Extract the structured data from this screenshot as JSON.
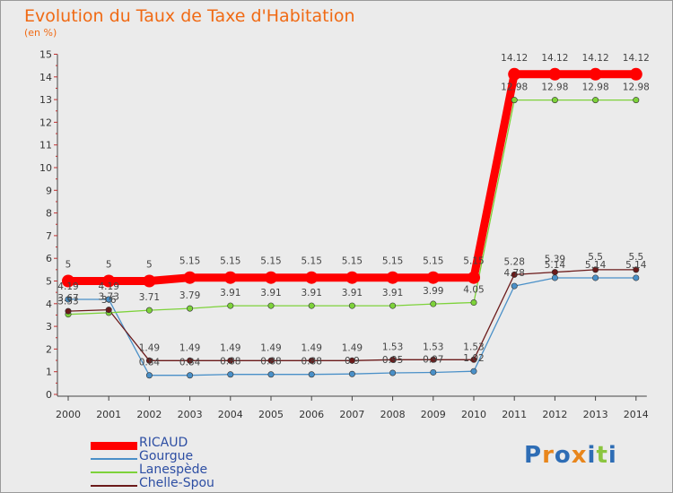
{
  "title": "Evolution du Taux de Taxe d'Habitation",
  "subtitle": "(en %)",
  "chart_data": {
    "type": "line",
    "title": "Evolution du Taux de Taxe d'Habitation",
    "ylabel": "(en %)",
    "xlabel": "",
    "x": [
      "2000",
      "2001",
      "2002",
      "2003",
      "2004",
      "2005",
      "2006",
      "2007",
      "2008",
      "2009",
      "2010",
      "2011",
      "2012",
      "2013",
      "2014"
    ],
    "ylim": [
      0,
      15
    ],
    "yticks": [
      0,
      1,
      2,
      3,
      4,
      5,
      6,
      7,
      8,
      9,
      10,
      11,
      12,
      13,
      14,
      15
    ],
    "legend_position": "bottom-left",
    "series": [
      {
        "name": "RICAUD",
        "color": "#ff0000",
        "values": [
          5,
          5,
          5,
          5.15,
          5.15,
          5.15,
          5.15,
          5.15,
          5.15,
          5.15,
          5.15,
          14.12,
          14.12,
          14.12,
          14.12
        ]
      },
      {
        "name": "Gourgue",
        "color": "#4a90c8",
        "values": [
          4.19,
          4.19,
          0.84,
          0.84,
          0.88,
          0.88,
          0.88,
          0.9,
          0.95,
          0.97,
          1.02,
          4.78,
          5.14,
          5.14,
          5.14
        ]
      },
      {
        "name": "Lanespède",
        "color": "#7dd23a",
        "values": [
          3.53,
          3.6,
          3.71,
          3.79,
          3.91,
          3.91,
          3.91,
          3.91,
          3.91,
          3.99,
          4.05,
          12.98,
          12.98,
          12.98,
          12.98
        ]
      },
      {
        "name": "Chelle-Spou",
        "color": "#6b1a1a",
        "values": [
          3.67,
          3.73,
          1.49,
          1.49,
          1.49,
          1.49,
          1.49,
          1.49,
          1.53,
          1.53,
          1.53,
          5.28,
          5.39,
          5.5,
          5.5
        ]
      }
    ]
  },
  "logo": {
    "text": "Proxiti",
    "colors": [
      "#2e6db5",
      "#e8861c",
      "#2e6db5",
      "#e8861c",
      "#2e6db5",
      "#8bc53f",
      "#2e6db5"
    ]
  }
}
